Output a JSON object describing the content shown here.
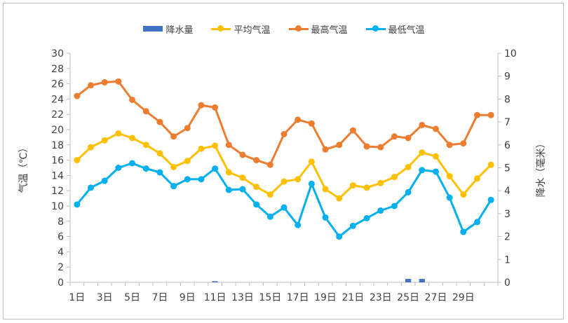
{
  "chart_data": {
    "type": "line",
    "days": [
      "1日",
      "2日",
      "3日",
      "4日",
      "5日",
      "6日",
      "7日",
      "8日",
      "9日",
      "10日",
      "11日",
      "12日",
      "13日",
      "14日",
      "15日",
      "16日",
      "17日",
      "18日",
      "19日",
      "20日",
      "21日",
      "22日",
      "23日",
      "24日",
      "25日",
      "26日",
      "27日",
      "28日",
      "29日",
      "30日",
      "31日"
    ],
    "tick_labels": [
      "1日",
      "3日",
      "5日",
      "7日",
      "9日",
      "11日",
      "13日",
      "15日",
      "17日",
      "19日",
      "21日",
      "23日",
      "25日",
      "27日",
      "29日"
    ],
    "series": [
      {
        "name": "降水量",
        "type": "bar",
        "axis": "right",
        "color": "#4472c4",
        "values": [
          0,
          0,
          0,
          0,
          0,
          0,
          0,
          0,
          0,
          0,
          0.05,
          0,
          0,
          0,
          0,
          0,
          0,
          0,
          0,
          0,
          0,
          0,
          0,
          0,
          0.15,
          0.15,
          0,
          0,
          0,
          0,
          0
        ]
      },
      {
        "name": "平均气温",
        "type": "line",
        "axis": "left",
        "color": "#ffc000",
        "values": [
          16.0,
          17.7,
          18.6,
          19.5,
          18.9,
          18.0,
          16.9,
          15.1,
          15.9,
          17.5,
          17.9,
          14.4,
          13.7,
          12.5,
          11.5,
          13.2,
          13.5,
          15.8,
          12.2,
          11.0,
          12.7,
          12.4,
          13.0,
          13.8,
          15.1,
          17.0,
          16.5,
          13.9,
          11.5,
          13.6,
          15.4
        ]
      },
      {
        "name": "最高气温",
        "type": "line",
        "axis": "left",
        "color": "#ed7d31",
        "values": [
          24.4,
          25.8,
          26.2,
          26.3,
          23.9,
          22.4,
          21.0,
          19.1,
          20.2,
          23.2,
          22.9,
          18.0,
          16.7,
          16.0,
          15.4,
          19.4,
          21.3,
          20.8,
          17.4,
          18.0,
          19.9,
          17.8,
          17.7,
          19.1,
          18.9,
          20.6,
          20.1,
          18.0,
          18.2,
          21.9,
          21.9
        ]
      },
      {
        "name": "最低气温",
        "type": "line",
        "axis": "left",
        "color": "#00b0f0",
        "values": [
          10.2,
          12.4,
          13.3,
          15.0,
          15.6,
          14.9,
          14.4,
          12.6,
          13.5,
          13.5,
          14.9,
          12.1,
          12.2,
          10.2,
          8.6,
          9.8,
          7.5,
          12.9,
          8.5,
          6.0,
          7.4,
          8.4,
          9.4,
          10.0,
          11.8,
          14.7,
          14.5,
          11.1,
          6.6,
          7.9,
          10.8
        ]
      }
    ],
    "y_left": {
      "label": "气温（℃）",
      "min": 0,
      "max": 30,
      "step": 2,
      "ticks": [
        "0",
        "2",
        "4",
        "6",
        "8",
        "10",
        "12",
        "14",
        "16",
        "18",
        "20",
        "22",
        "24",
        "26",
        "28",
        "30"
      ]
    },
    "y_right": {
      "label": "降水（毫米）",
      "min": 0,
      "max": 10,
      "step": 1,
      "ticks": [
        "0",
        "1",
        "2",
        "3",
        "4",
        "5",
        "6",
        "7",
        "8",
        "9",
        "10"
      ]
    },
    "legend_position": "top-center",
    "grid": false
  }
}
